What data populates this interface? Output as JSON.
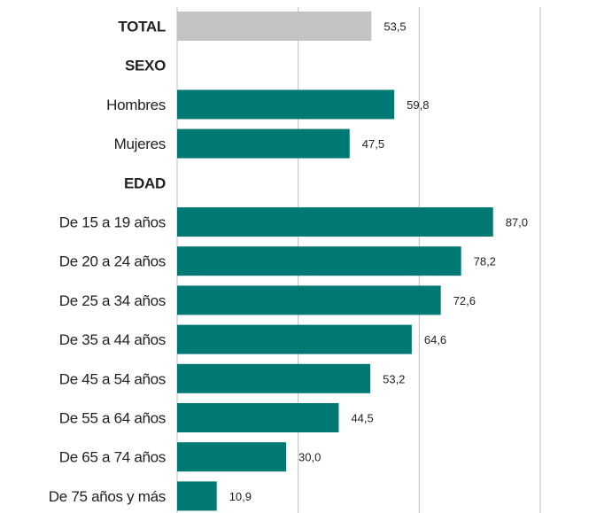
{
  "chart_data": {
    "type": "bar",
    "orientation": "horizontal",
    "title": "",
    "xlabel": "",
    "ylabel": "",
    "xlim": [
      0,
      100
    ],
    "grid": true,
    "categories": [
      "TOTAL",
      "SEXO",
      "Hombres",
      "Mujeres",
      "EDAD",
      "De 15 a 19 años",
      "De 20 a 24 años",
      "De 25 a 34 años",
      "De 35 a 44 años",
      "De 45 a 54 años",
      "De 55 a 64 años",
      "De 65 a 74 años",
      "De 75 años y más"
    ],
    "values": [
      53.5,
      null,
      59.8,
      47.5,
      null,
      87.0,
      78.2,
      72.6,
      64.6,
      53.2,
      44.5,
      30.0,
      10.9
    ],
    "value_labels": [
      "53,5",
      "",
      "59,8",
      "47,5",
      "",
      "87,0",
      "78,2",
      "72,6",
      "64,6",
      "53,2",
      "44,5",
      "30,0",
      "10,9"
    ],
    "colors": {
      "total": "#c3c3c3",
      "bars": "#007873",
      "grid": "#bdbdbd",
      "text": "#222222"
    }
  }
}
